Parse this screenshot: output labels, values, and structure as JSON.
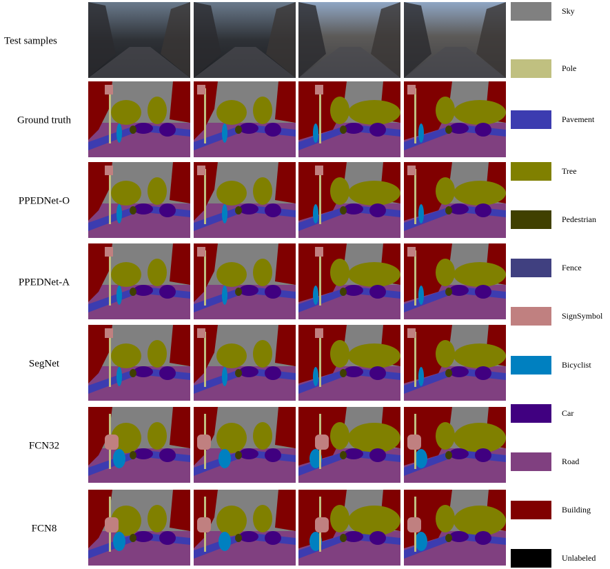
{
  "rows": [
    {
      "label": "Test samples"
    },
    {
      "label": "Ground truth"
    },
    {
      "label": "PPEDNet-O"
    },
    {
      "label": "PPEDNet-A"
    },
    {
      "label": "SegNet"
    },
    {
      "label": "FCN32"
    },
    {
      "label": "FCN8"
    }
  ],
  "legend": [
    {
      "label": "Sky",
      "color": "#808080"
    },
    {
      "label": "Pole",
      "color": "#c0c080"
    },
    {
      "label": "Pavement",
      "color": "#3c3cb0"
    },
    {
      "label": "Tree",
      "color": "#808000"
    },
    {
      "label": "Pedestrian",
      "color": "#404000"
    },
    {
      "label": "Fence",
      "color": "#404080"
    },
    {
      "label": "SignSymbol",
      "color": "#c08080"
    },
    {
      "label": "Bicyclist",
      "color": "#0080c0"
    },
    {
      "label": "Car",
      "color": "#400080"
    },
    {
      "label": "Road",
      "color": "#804080"
    },
    {
      "label": "Building",
      "color": "#800000"
    },
    {
      "label": "Unlabeled",
      "color": "#000000"
    }
  ]
}
